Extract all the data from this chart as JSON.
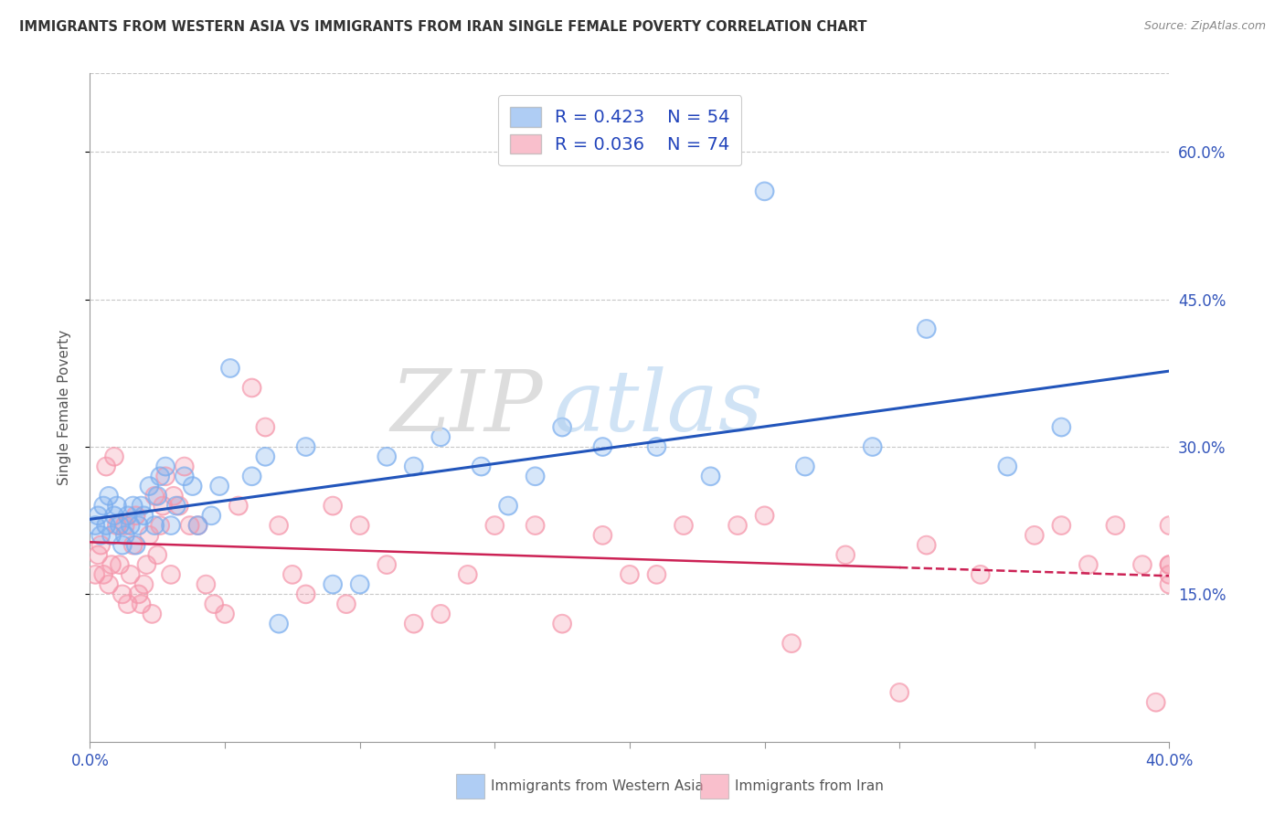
{
  "title": "IMMIGRANTS FROM WESTERN ASIA VS IMMIGRANTS FROM IRAN SINGLE FEMALE POVERTY CORRELATION CHART",
  "source": "Source: ZipAtlas.com",
  "ylabel": "Single Female Poverty",
  "xlim": [
    0.0,
    0.4
  ],
  "ylim": [
    0.0,
    0.68
  ],
  "ytick_positions": [
    0.15,
    0.3,
    0.45,
    0.6
  ],
  "ytick_labels": [
    "15.0%",
    "30.0%",
    "45.0%",
    "60.0%"
  ],
  "grid_color": "#c8c8c8",
  "background_color": "#ffffff",
  "series1_color": "#7aadee",
  "series2_color": "#f595aa",
  "series1_label": "Immigrants from Western Asia",
  "series2_label": "Immigrants from Iran",
  "legend_r1": "R = 0.423",
  "legend_n1": "N = 54",
  "legend_r2": "R = 0.036",
  "legend_n2": "N = 74",
  "watermark_zip": "ZIP",
  "watermark_atlas": "atlas",
  "line1_color": "#2255bb",
  "line2_color": "#cc2255",
  "series1_x": [
    0.002,
    0.003,
    0.004,
    0.005,
    0.006,
    0.007,
    0.008,
    0.009,
    0.01,
    0.011,
    0.012,
    0.013,
    0.014,
    0.015,
    0.016,
    0.017,
    0.018,
    0.019,
    0.02,
    0.022,
    0.024,
    0.025,
    0.026,
    0.028,
    0.03,
    0.032,
    0.035,
    0.038,
    0.04,
    0.045,
    0.048,
    0.052,
    0.06,
    0.065,
    0.07,
    0.08,
    0.09,
    0.1,
    0.11,
    0.12,
    0.13,
    0.145,
    0.155,
    0.165,
    0.175,
    0.19,
    0.21,
    0.23,
    0.25,
    0.265,
    0.29,
    0.31,
    0.34,
    0.36
  ],
  "series1_y": [
    0.22,
    0.23,
    0.21,
    0.24,
    0.22,
    0.25,
    0.21,
    0.23,
    0.24,
    0.22,
    0.2,
    0.21,
    0.23,
    0.22,
    0.24,
    0.2,
    0.22,
    0.24,
    0.23,
    0.26,
    0.22,
    0.25,
    0.27,
    0.28,
    0.22,
    0.24,
    0.27,
    0.26,
    0.22,
    0.23,
    0.26,
    0.38,
    0.27,
    0.29,
    0.12,
    0.3,
    0.16,
    0.16,
    0.29,
    0.28,
    0.31,
    0.28,
    0.24,
    0.27,
    0.32,
    0.3,
    0.3,
    0.27,
    0.56,
    0.28,
    0.3,
    0.42,
    0.28,
    0.32
  ],
  "series2_x": [
    0.002,
    0.003,
    0.004,
    0.005,
    0.006,
    0.007,
    0.008,
    0.009,
    0.01,
    0.011,
    0.012,
    0.013,
    0.014,
    0.015,
    0.016,
    0.017,
    0.018,
    0.019,
    0.02,
    0.021,
    0.022,
    0.023,
    0.024,
    0.025,
    0.026,
    0.027,
    0.028,
    0.03,
    0.031,
    0.033,
    0.035,
    0.037,
    0.04,
    0.043,
    0.046,
    0.05,
    0.055,
    0.06,
    0.065,
    0.07,
    0.075,
    0.08,
    0.09,
    0.095,
    0.1,
    0.11,
    0.12,
    0.13,
    0.14,
    0.15,
    0.165,
    0.175,
    0.19,
    0.2,
    0.21,
    0.22,
    0.24,
    0.25,
    0.26,
    0.28,
    0.3,
    0.31,
    0.33,
    0.35,
    0.36,
    0.37,
    0.38,
    0.39,
    0.395,
    0.4,
    0.4,
    0.4,
    0.4,
    0.4
  ],
  "series2_y": [
    0.17,
    0.19,
    0.2,
    0.17,
    0.28,
    0.16,
    0.18,
    0.29,
    0.22,
    0.18,
    0.15,
    0.22,
    0.14,
    0.17,
    0.2,
    0.23,
    0.15,
    0.14,
    0.16,
    0.18,
    0.21,
    0.13,
    0.25,
    0.19,
    0.22,
    0.24,
    0.27,
    0.17,
    0.25,
    0.24,
    0.28,
    0.22,
    0.22,
    0.16,
    0.14,
    0.13,
    0.24,
    0.36,
    0.32,
    0.22,
    0.17,
    0.15,
    0.24,
    0.14,
    0.22,
    0.18,
    0.12,
    0.13,
    0.17,
    0.22,
    0.22,
    0.12,
    0.21,
    0.17,
    0.17,
    0.22,
    0.22,
    0.23,
    0.1,
    0.19,
    0.05,
    0.2,
    0.17,
    0.21,
    0.22,
    0.18,
    0.22,
    0.18,
    0.04,
    0.18,
    0.16,
    0.17,
    0.22,
    0.18
  ]
}
